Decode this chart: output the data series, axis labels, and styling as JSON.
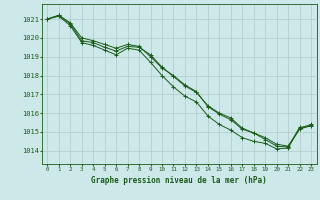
{
  "title": "Graphe pression niveau de la mer (hPa)",
  "bg_color": "#cce8e8",
  "grid_color": "#b0c8c8",
  "line_color": "#1a5c1a",
  "xlim": [
    -0.5,
    23.5
  ],
  "ylim": [
    1013.3,
    1021.8
  ],
  "xticks": [
    0,
    1,
    2,
    3,
    4,
    5,
    6,
    7,
    8,
    9,
    10,
    11,
    12,
    13,
    14,
    15,
    16,
    17,
    18,
    19,
    20,
    21,
    22,
    23
  ],
  "yticks": [
    1014,
    1015,
    1016,
    1017,
    1018,
    1019,
    1020,
    1021
  ],
  "series": [
    [
      1021.0,
      1021.2,
      1020.8,
      1020.0,
      1019.85,
      1019.65,
      1019.45,
      1019.65,
      1019.55,
      1019.0,
      1018.4,
      1018.0,
      1017.5,
      1017.15,
      1016.35,
      1015.95,
      1015.65,
      1015.15,
      1014.95,
      1014.6,
      1014.25,
      1014.2,
      1015.15,
      1015.35
    ],
    [
      1021.0,
      1021.15,
      1020.65,
      1019.75,
      1019.6,
      1019.35,
      1019.1,
      1019.45,
      1019.35,
      1018.7,
      1018.0,
      1017.4,
      1016.9,
      1016.6,
      1015.85,
      1015.4,
      1015.1,
      1014.7,
      1014.5,
      1014.4,
      1014.1,
      1014.15,
      1015.25,
      1015.3
    ],
    [
      1021.0,
      1021.2,
      1020.75,
      1019.85,
      1019.75,
      1019.5,
      1019.3,
      1019.55,
      1019.5,
      1019.1,
      1018.45,
      1017.95,
      1017.45,
      1017.1,
      1016.4,
      1016.0,
      1015.75,
      1015.2,
      1014.95,
      1014.7,
      1014.35,
      1014.25,
      1015.2,
      1015.4
    ]
  ]
}
